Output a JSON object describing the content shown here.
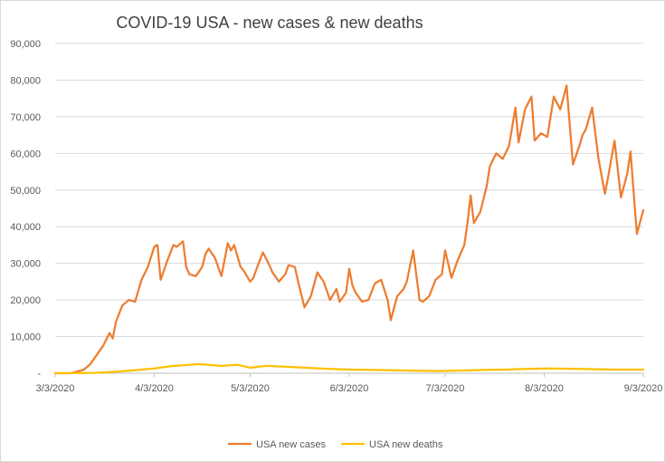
{
  "chart_data": {
    "type": "line",
    "title": "COVID-19 USA - new cases & new deaths",
    "xlabel": "",
    "ylabel": "",
    "ylim": [
      0,
      90000
    ],
    "y_ticks": [
      0,
      10000,
      20000,
      30000,
      40000,
      50000,
      60000,
      70000,
      80000,
      90000
    ],
    "y_tick_labels": [
      "-",
      "10,000",
      "20,000",
      "30,000",
      "40,000",
      "50,000",
      "60,000",
      "70,000",
      "80,000",
      "90,000"
    ],
    "x_range": [
      "3/3/2020",
      "9/3/2020"
    ],
    "x_tick_labels": [
      "3/3/2020",
      "4/3/2020",
      "5/3/2020",
      "6/3/2020",
      "7/3/2020",
      "8/3/2020",
      "9/3/2020"
    ],
    "grid": "horizontal",
    "legend_position": "bottom",
    "series": [
      {
        "name": "USA new cases",
        "color": "#ed7d31",
        "x": [
          "3/3/2020",
          "3/8/2020",
          "3/10/2020",
          "3/12/2020",
          "3/14/2020",
          "3/16/2020",
          "3/18/2020",
          "3/20/2020",
          "3/21/2020",
          "3/22/2020",
          "3/24/2020",
          "3/26/2020",
          "3/28/2020",
          "3/30/2020",
          "4/1/2020",
          "4/3/2020",
          "4/4/2020",
          "4/5/2020",
          "4/7/2020",
          "4/9/2020",
          "4/10/2020",
          "4/12/2020",
          "4/13/2020",
          "4/14/2020",
          "4/16/2020",
          "4/18/2020",
          "4/19/2020",
          "4/20/2020",
          "4/22/2020",
          "4/24/2020",
          "4/26/2020",
          "4/27/2020",
          "4/28/2020",
          "4/30/2020",
          "5/1/2020",
          "5/3/2020",
          "5/4/2020",
          "5/5/2020",
          "5/7/2020",
          "5/9/2020",
          "5/10/2020",
          "5/12/2020",
          "5/14/2020",
          "5/15/2020",
          "5/17/2020",
          "5/18/2020",
          "5/20/2020",
          "5/22/2020",
          "5/24/2020",
          "5/26/2020",
          "5/28/2020",
          "5/30/2020",
          "5/31/2020",
          "6/2/2020",
          "6/3/2020",
          "6/4/2020",
          "6/5/2020",
          "6/7/2020",
          "6/9/2020",
          "6/11/2020",
          "6/13/2020",
          "6/15/2020",
          "6/16/2020",
          "6/18/2020",
          "6/20/2020",
          "6/21/2020",
          "6/23/2020",
          "6/25/2020",
          "6/26/2020",
          "6/28/2020",
          "6/30/2020",
          "7/2/2020",
          "7/3/2020",
          "7/5/2020",
          "7/7/2020",
          "7/9/2020",
          "7/10/2020",
          "7/11/2020",
          "7/12/2020",
          "7/14/2020",
          "7/16/2020",
          "7/17/2020",
          "7/19/2020",
          "7/21/2020",
          "7/23/2020",
          "7/25/2020",
          "7/26/2020",
          "7/28/2020",
          "7/30/2020",
          "7/31/2020",
          "8/2/2020",
          "8/4/2020",
          "8/6/2020",
          "8/8/2020",
          "8/10/2020",
          "8/12/2020",
          "8/14/2020",
          "8/15/2020",
          "8/16/2020",
          "8/18/2020",
          "8/20/2020",
          "8/22/2020",
          "8/23/2020",
          "8/25/2020",
          "8/27/2020",
          "8/29/2020",
          "8/30/2020",
          "9/1/2020",
          "9/3/2020"
        ],
        "values": [
          0,
          0,
          500,
          1000,
          2500,
          5000,
          7500,
          11000,
          9500,
          14000,
          18500,
          20000,
          19500,
          25500,
          29000,
          34500,
          35000,
          25500,
          30500,
          35000,
          34500,
          36000,
          29000,
          27000,
          26500,
          29000,
          32500,
          34000,
          31500,
          26500,
          35500,
          33500,
          35000,
          29000,
          28000,
          25000,
          26000,
          28500,
          33000,
          29500,
          27500,
          25000,
          27000,
          29500,
          29000,
          25000,
          18000,
          21000,
          27500,
          25000,
          20000,
          23000,
          19500,
          22000,
          28500,
          24000,
          22000,
          19500,
          20000,
          24500,
          25500,
          20000,
          14500,
          21000,
          23000,
          25000,
          33500,
          20000,
          19500,
          21000,
          25500,
          27000,
          33500,
          26000,
          31000,
          35000,
          41000,
          48500,
          41000,
          44000,
          51000,
          56500,
          60000,
          58500,
          62000,
          72500,
          63000,
          72000,
          75500,
          63500,
          65500,
          64500,
          75500,
          72000,
          78500,
          57000,
          62000,
          65000,
          66500,
          72500,
          58500,
          49000,
          53500,
          63500,
          48000,
          54500,
          60500,
          38000,
          44500
        ]
      },
      {
        "name": "USA new deaths",
        "color": "#ffc000",
        "x": [
          "3/3/2020",
          "3/15/2020",
          "3/22/2020",
          "3/29/2020",
          "4/3/2020",
          "4/8/2020",
          "4/14/2020",
          "4/17/2020",
          "4/21/2020",
          "4/24/2020",
          "4/29/2020",
          "5/3/2020",
          "5/8/2020",
          "5/14/2020",
          "5/20/2020",
          "5/27/2020",
          "6/3/2020",
          "6/10/2020",
          "6/17/2020",
          "6/24/2020",
          "7/1/2020",
          "7/8/2020",
          "7/15/2020",
          "7/22/2020",
          "7/29/2020",
          "8/5/2020",
          "8/12/2020",
          "8/19/2020",
          "8/26/2020",
          "9/3/2020"
        ],
        "values": [
          0,
          100,
          400,
          900,
          1300,
          1900,
          2300,
          2500,
          2200,
          2000,
          2300,
          1500,
          2000,
          1800,
          1500,
          1200,
          1000,
          900,
          800,
          700,
          600,
          750,
          900,
          1000,
          1200,
          1300,
          1200,
          1100,
          1000,
          1000
        ]
      }
    ]
  }
}
